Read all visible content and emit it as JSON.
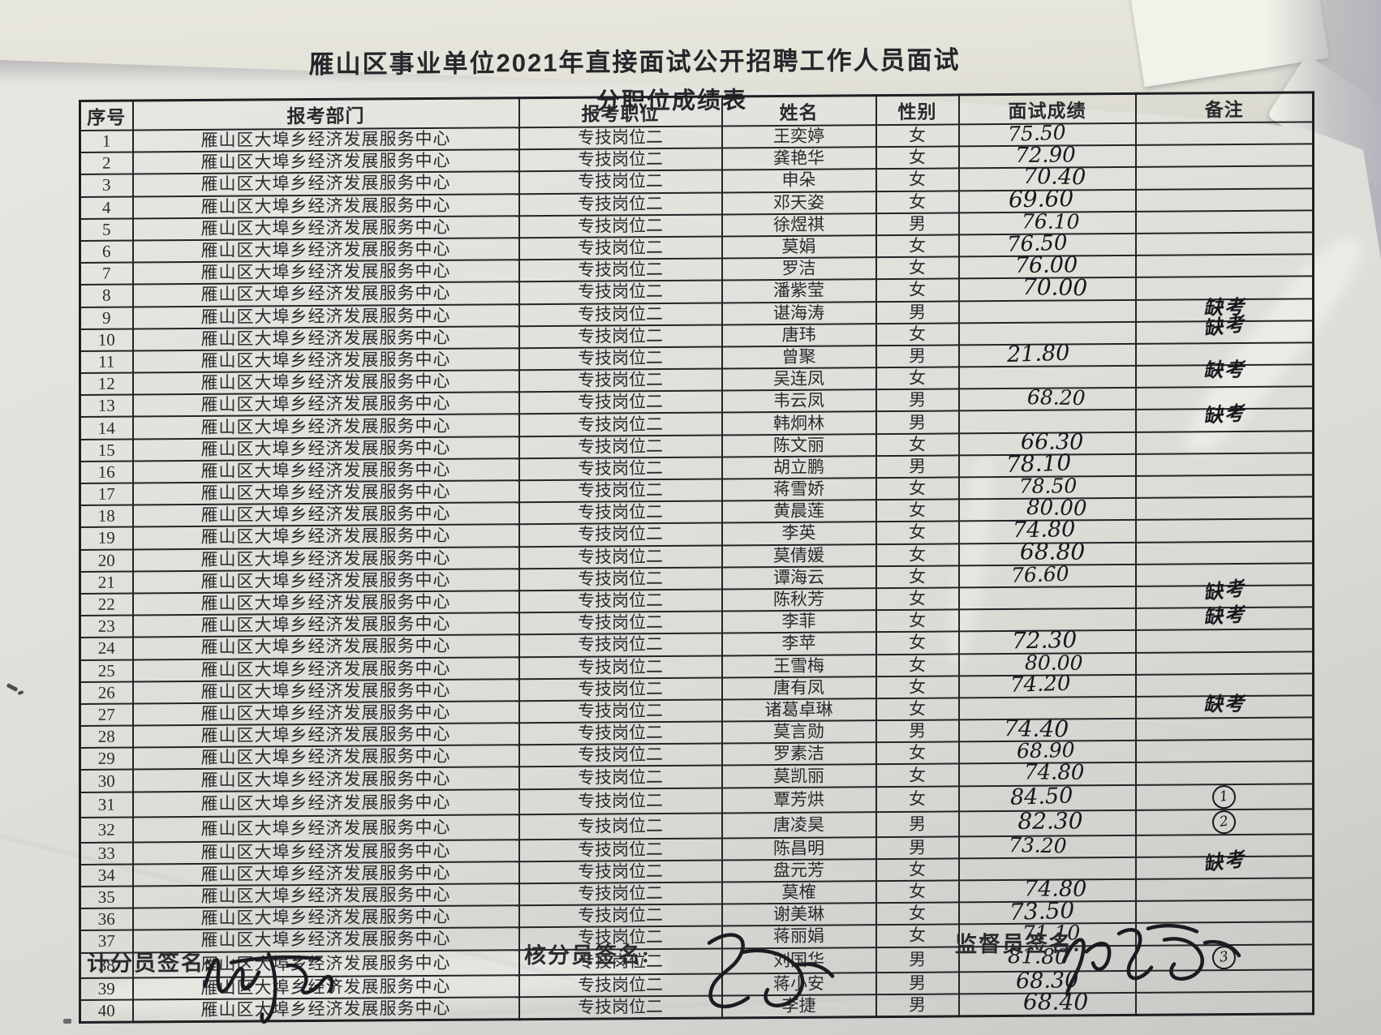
{
  "document": {
    "title_line1": "雁山区事业单位2021年直接面试公开招聘工作人员面试",
    "title_line2": "分职位成绩表"
  },
  "table": {
    "headers": [
      "序号",
      "报考部门",
      "报考职位",
      "姓名",
      "性别",
      "面试成绩",
      "备注"
    ],
    "rows": [
      {
        "no": "1",
        "dept": "雁山区大埠乡经济发展服务中心",
        "pos": "专技岗位二",
        "name": "王奕婷",
        "gender": "女",
        "score": "75.50",
        "remark": ""
      },
      {
        "no": "2",
        "dept": "雁山区大埠乡经济发展服务中心",
        "pos": "专技岗位二",
        "name": "龚艳华",
        "gender": "女",
        "score": "72.90",
        "remark": ""
      },
      {
        "no": "3",
        "dept": "雁山区大埠乡经济发展服务中心",
        "pos": "专技岗位二",
        "name": "申朵",
        "gender": "女",
        "score": "70.40",
        "remark": ""
      },
      {
        "no": "4",
        "dept": "雁山区大埠乡经济发展服务中心",
        "pos": "专技岗位二",
        "name": "邓天姿",
        "gender": "女",
        "score": "69.60",
        "remark": ""
      },
      {
        "no": "5",
        "dept": "雁山区大埠乡经济发展服务中心",
        "pos": "专技岗位二",
        "name": "徐煜祺",
        "gender": "男",
        "score": "76.10",
        "remark": ""
      },
      {
        "no": "6",
        "dept": "雁山区大埠乡经济发展服务中心",
        "pos": "专技岗位二",
        "name": "莫娟",
        "gender": "女",
        "score": "76.50",
        "remark": ""
      },
      {
        "no": "7",
        "dept": "雁山区大埠乡经济发展服务中心",
        "pos": "专技岗位二",
        "name": "罗洁",
        "gender": "女",
        "score": "76.00",
        "remark": ""
      },
      {
        "no": "8",
        "dept": "雁山区大埠乡经济发展服务中心",
        "pos": "专技岗位二",
        "name": "潘紫莹",
        "gender": "女",
        "score": "70.00",
        "remark": ""
      },
      {
        "no": "9",
        "dept": "雁山区大埠乡经济发展服务中心",
        "pos": "专技岗位二",
        "name": "谌海涛",
        "gender": "男",
        "score": "",
        "remark": "缺考"
      },
      {
        "no": "10",
        "dept": "雁山区大埠乡经济发展服务中心",
        "pos": "专技岗位二",
        "name": "唐玮",
        "gender": "女",
        "score": "",
        "remark": "缺考"
      },
      {
        "no": "11",
        "dept": "雁山区大埠乡经济发展服务中心",
        "pos": "专技岗位二",
        "name": "曾聚",
        "gender": "男",
        "score": "21.80",
        "remark": ""
      },
      {
        "no": "12",
        "dept": "雁山区大埠乡经济发展服务中心",
        "pos": "专技岗位二",
        "name": "吴连凤",
        "gender": "女",
        "score": "",
        "remark": "缺考"
      },
      {
        "no": "13",
        "dept": "雁山区大埠乡经济发展服务中心",
        "pos": "专技岗位二",
        "name": "韦云凤",
        "gender": "男",
        "score": "68.20",
        "remark": ""
      },
      {
        "no": "14",
        "dept": "雁山区大埠乡经济发展服务中心",
        "pos": "专技岗位二",
        "name": "韩炯林",
        "gender": "男",
        "score": "",
        "remark": "缺考"
      },
      {
        "no": "15",
        "dept": "雁山区大埠乡经济发展服务中心",
        "pos": "专技岗位二",
        "name": "陈文丽",
        "gender": "女",
        "score": "66.30",
        "remark": ""
      },
      {
        "no": "16",
        "dept": "雁山区大埠乡经济发展服务中心",
        "pos": "专技岗位二",
        "name": "胡立鹏",
        "gender": "男",
        "score": "78.10",
        "remark": ""
      },
      {
        "no": "17",
        "dept": "雁山区大埠乡经济发展服务中心",
        "pos": "专技岗位二",
        "name": "蒋雪娇",
        "gender": "女",
        "score": "78.50",
        "remark": ""
      },
      {
        "no": "18",
        "dept": "雁山区大埠乡经济发展服务中心",
        "pos": "专技岗位二",
        "name": "黄晨莲",
        "gender": "女",
        "score": "80.00",
        "remark": ""
      },
      {
        "no": "19",
        "dept": "雁山区大埠乡经济发展服务中心",
        "pos": "专技岗位二",
        "name": "李英",
        "gender": "女",
        "score": "74.80",
        "remark": ""
      },
      {
        "no": "20",
        "dept": "雁山区大埠乡经济发展服务中心",
        "pos": "专技岗位二",
        "name": "莫倩媛",
        "gender": "女",
        "score": "68.80",
        "remark": ""
      },
      {
        "no": "21",
        "dept": "雁山区大埠乡经济发展服务中心",
        "pos": "专技岗位二",
        "name": "谭海云",
        "gender": "女",
        "score": "76.60",
        "remark": ""
      },
      {
        "no": "22",
        "dept": "雁山区大埠乡经济发展服务中心",
        "pos": "专技岗位二",
        "name": "陈秋芳",
        "gender": "女",
        "score": "",
        "remark": "缺考"
      },
      {
        "no": "23",
        "dept": "雁山区大埠乡经济发展服务中心",
        "pos": "专技岗位二",
        "name": "李菲",
        "gender": "女",
        "score": "",
        "remark": "缺考"
      },
      {
        "no": "24",
        "dept": "雁山区大埠乡经济发展服务中心",
        "pos": "专技岗位二",
        "name": "李苹",
        "gender": "女",
        "score": "72.30",
        "remark": ""
      },
      {
        "no": "25",
        "dept": "雁山区大埠乡经济发展服务中心",
        "pos": "专技岗位二",
        "name": "王雪梅",
        "gender": "女",
        "score": "80.00",
        "remark": ""
      },
      {
        "no": "26",
        "dept": "雁山区大埠乡经济发展服务中心",
        "pos": "专技岗位二",
        "name": "唐有凤",
        "gender": "女",
        "score": "74.20",
        "remark": ""
      },
      {
        "no": "27",
        "dept": "雁山区大埠乡经济发展服务中心",
        "pos": "专技岗位二",
        "name": "诸葛卓琳",
        "gender": "女",
        "score": "",
        "remark": "缺考"
      },
      {
        "no": "28",
        "dept": "雁山区大埠乡经济发展服务中心",
        "pos": "专技岗位二",
        "name": "莫言勋",
        "gender": "男",
        "score": "74.40",
        "remark": ""
      },
      {
        "no": "29",
        "dept": "雁山区大埠乡经济发展服务中心",
        "pos": "专技岗位二",
        "name": "罗素洁",
        "gender": "女",
        "score": "68.90",
        "remark": ""
      },
      {
        "no": "30",
        "dept": "雁山区大埠乡经济发展服务中心",
        "pos": "专技岗位二",
        "name": "莫凯丽",
        "gender": "女",
        "score": "74.80",
        "remark": ""
      },
      {
        "no": "31",
        "dept": "雁山区大埠乡经济发展服务中心",
        "pos": "专技岗位二",
        "name": "覃芳烘",
        "gender": "女",
        "score": "84.50",
        "remark": "①"
      },
      {
        "no": "32",
        "dept": "雁山区大埠乡经济发展服务中心",
        "pos": "专技岗位二",
        "name": "唐凌昊",
        "gender": "男",
        "score": "82.30",
        "remark": "②"
      },
      {
        "no": "33",
        "dept": "雁山区大埠乡经济发展服务中心",
        "pos": "专技岗位二",
        "name": "陈昌明",
        "gender": "男",
        "score": "73.20",
        "remark": ""
      },
      {
        "no": "34",
        "dept": "雁山区大埠乡经济发展服务中心",
        "pos": "专技岗位二",
        "name": "盘元芳",
        "gender": "女",
        "score": "",
        "remark": "缺考"
      },
      {
        "no": "35",
        "dept": "雁山区大埠乡经济发展服务中心",
        "pos": "专技岗位二",
        "name": "莫榷",
        "gender": "女",
        "score": "74.80",
        "remark": ""
      },
      {
        "no": "36",
        "dept": "雁山区大埠乡经济发展服务中心",
        "pos": "专技岗位二",
        "name": "谢美琳",
        "gender": "女",
        "score": "73.50",
        "remark": ""
      },
      {
        "no": "37",
        "dept": "雁山区大埠乡经济发展服务中心",
        "pos": "专技岗位二",
        "name": "蒋丽娟",
        "gender": "女",
        "score": "71.10",
        "remark": ""
      },
      {
        "no": "38",
        "dept": "雁山区大埠乡经济发展服务中心",
        "pos": "专技岗位二",
        "name": "刘国华",
        "gender": "男",
        "score": "81.80",
        "remark": "③"
      },
      {
        "no": "39",
        "dept": "雁山区大埠乡经济发展服务中心",
        "pos": "专技岗位二",
        "name": "蒋小安",
        "gender": "男",
        "score": "68.30",
        "remark": ""
      },
      {
        "no": "40",
        "dept": "雁山区大埠乡经济发展服务中心",
        "pos": "专技岗位二",
        "name": "李捷",
        "gender": "男",
        "score": "68.40",
        "remark": ""
      }
    ]
  },
  "signatures": {
    "scorer_label": "计分员签名:",
    "checker_label": "核分员签名:",
    "supervisor_label": "监督员签名:"
  },
  "colors": {
    "paper": "#e3e1dc",
    "background": "#c6c6cc",
    "table_line": "#242428",
    "printed_text": "#2a2a2e",
    "handwriting_ink": "#17171c"
  },
  "icons": {
    "absent_mark": "缺考",
    "rank_circle_1": "①",
    "rank_circle_2": "②",
    "rank_circle_3": "③"
  }
}
